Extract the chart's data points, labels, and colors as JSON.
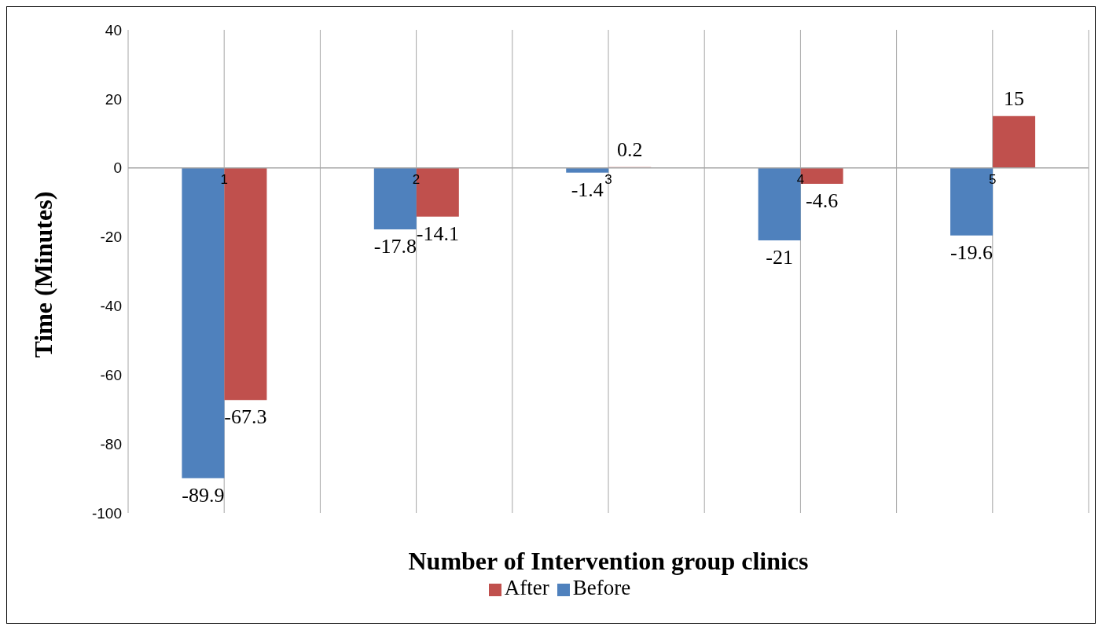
{
  "chart_data": {
    "type": "bar",
    "xlabel": "Number of Intervention group clinics",
    "ylabel": "Time (Minutes)",
    "categories": [
      "1",
      "2",
      "3",
      "4",
      "5"
    ],
    "series": [
      {
        "name": "Before",
        "color": "#4f81bd",
        "values": [
          -89.9,
          -17.8,
          -1.4,
          -21,
          -19.6
        ]
      },
      {
        "name": "After",
        "color": "#c0504d",
        "values": [
          -67.3,
          -14.1,
          0.2,
          -4.6,
          15
        ]
      }
    ],
    "ylim": [
      -100,
      40
    ],
    "yticks": [
      -100,
      -80,
      -60,
      -40,
      -20,
      0,
      20,
      40
    ],
    "grid": "x",
    "legend": "bottom",
    "data_labels": true
  }
}
